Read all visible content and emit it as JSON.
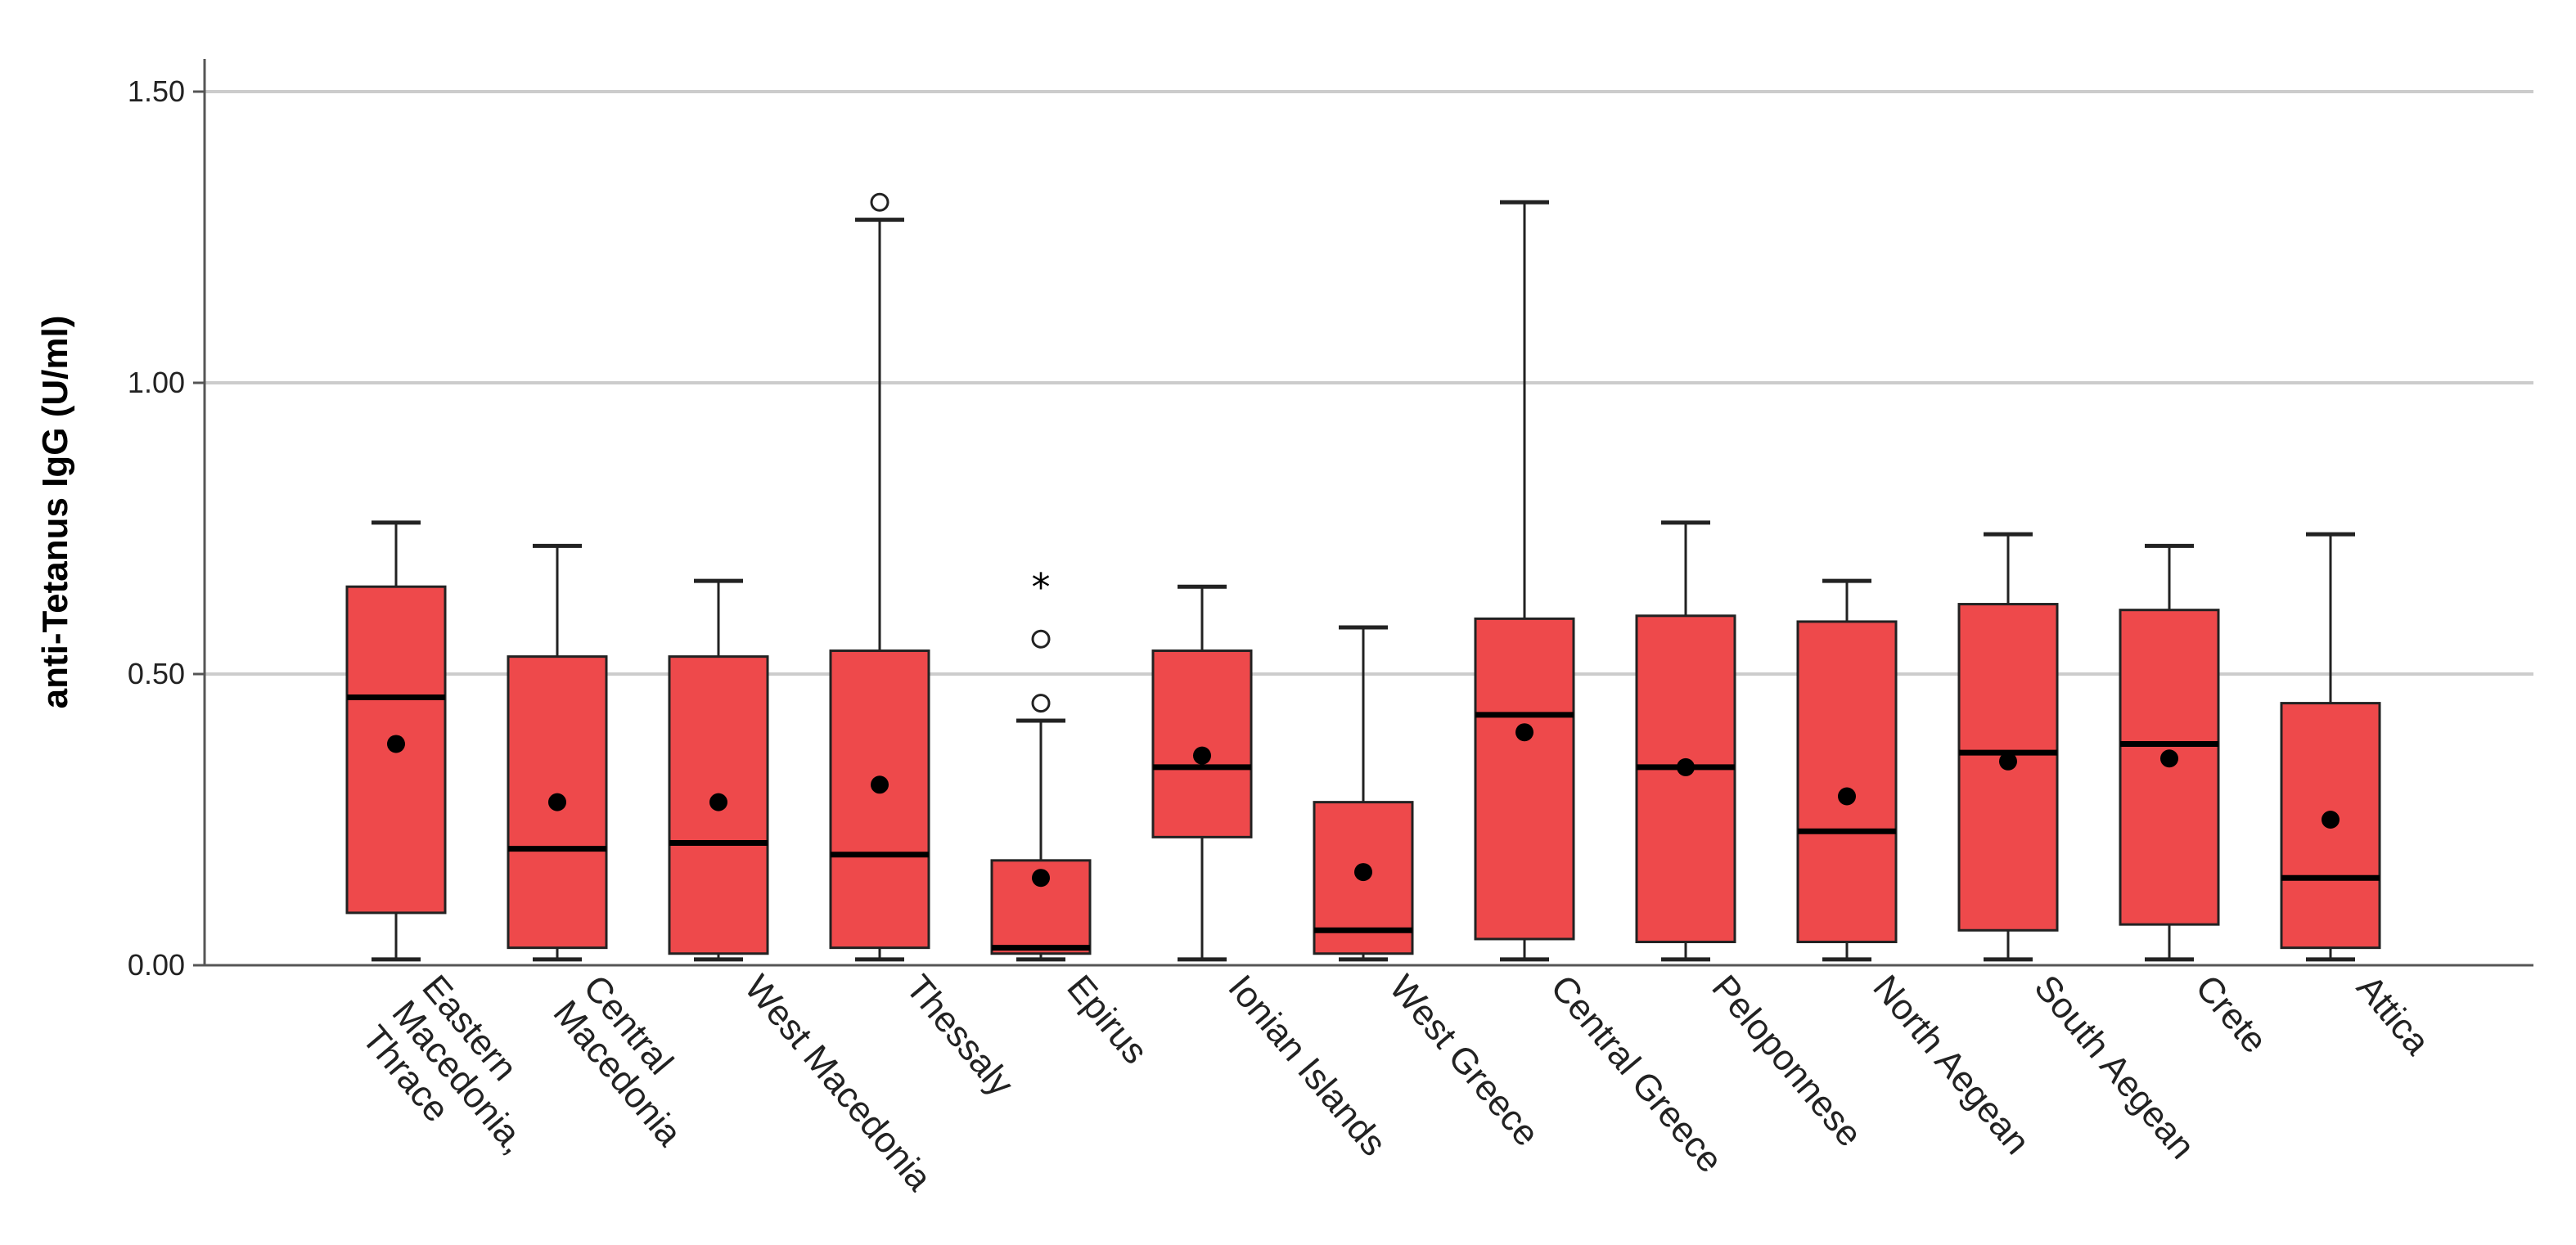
{
  "chart_data": {
    "type": "boxplot",
    "title": "",
    "xlabel": "",
    "ylabel": "anti-Tetanus IgG (U/ml)",
    "ylim": [
      0,
      1.5
    ],
    "yticks": [
      0,
      0.5,
      1.0,
      1.5
    ],
    "ytick_labels": [
      "0.00",
      "0.50",
      "1.00",
      "1.50"
    ],
    "grid": "horizontal",
    "colors": {
      "box_fill": "#ee494b",
      "box_edge": "#222222",
      "median": "#000000",
      "mean_marker": "#000000",
      "grid": "#cccccc",
      "axis": "#555555"
    },
    "markers": {
      "outlier": "○",
      "extreme": "*"
    },
    "categories": [
      {
        "label_lines": [
          "Eastern",
          "Macedonia,",
          "Thrace"
        ],
        "whisker_low": 0.01,
        "q1": 0.09,
        "median": 0.46,
        "q3": 0.65,
        "whisker_high": 0.76,
        "mean": 0.38,
        "outliers": [],
        "extremes": []
      },
      {
        "label_lines": [
          "Central",
          "Macedonia"
        ],
        "whisker_low": 0.01,
        "q1": 0.03,
        "median": 0.2,
        "q3": 0.53,
        "whisker_high": 0.72,
        "mean": 0.28,
        "outliers": [],
        "extremes": []
      },
      {
        "label_lines": [
          "West Macedonia"
        ],
        "whisker_low": 0.01,
        "q1": 0.02,
        "median": 0.21,
        "q3": 0.53,
        "whisker_high": 0.66,
        "mean": 0.28,
        "outliers": [],
        "extremes": []
      },
      {
        "label_lines": [
          "Thessaly"
        ],
        "whisker_low": 0.01,
        "q1": 0.03,
        "median": 0.19,
        "q3": 0.54,
        "whisker_high": 1.28,
        "mean": 0.31,
        "outliers": [
          1.31
        ],
        "extremes": []
      },
      {
        "label_lines": [
          "Epirus"
        ],
        "whisker_low": 0.01,
        "q1": 0.02,
        "median": 0.03,
        "q3": 0.18,
        "whisker_high": 0.42,
        "mean": 0.15,
        "outliers": [
          0.45,
          0.56
        ],
        "extremes": [
          0.66
        ]
      },
      {
        "label_lines": [
          "Ionian Islands"
        ],
        "whisker_low": 0.01,
        "q1": 0.22,
        "median": 0.34,
        "q3": 0.54,
        "whisker_high": 0.65,
        "mean": 0.36,
        "outliers": [],
        "extremes": []
      },
      {
        "label_lines": [
          "West Greece"
        ],
        "whisker_low": 0.01,
        "q1": 0.02,
        "median": 0.06,
        "q3": 0.28,
        "whisker_high": 0.58,
        "mean": 0.16,
        "outliers": [],
        "extremes": []
      },
      {
        "label_lines": [
          "Central Greece"
        ],
        "whisker_low": 0.01,
        "q1": 0.045,
        "median": 0.43,
        "q3": 0.595,
        "whisker_high": 1.31,
        "mean": 0.4,
        "outliers": [],
        "extremes": []
      },
      {
        "label_lines": [
          "Peloponnese"
        ],
        "whisker_low": 0.01,
        "q1": 0.04,
        "median": 0.34,
        "q3": 0.6,
        "whisker_high": 0.76,
        "mean": 0.34,
        "outliers": [],
        "extremes": []
      },
      {
        "label_lines": [
          "North Aegean"
        ],
        "whisker_low": 0.01,
        "q1": 0.04,
        "median": 0.23,
        "q3": 0.59,
        "whisker_high": 0.66,
        "mean": 0.29,
        "outliers": [],
        "extremes": []
      },
      {
        "label_lines": [
          "South Aegean"
        ],
        "whisker_low": 0.01,
        "q1": 0.06,
        "median": 0.365,
        "q3": 0.62,
        "whisker_high": 0.74,
        "mean": 0.35,
        "outliers": [],
        "extremes": []
      },
      {
        "label_lines": [
          "Crete"
        ],
        "whisker_low": 0.01,
        "q1": 0.07,
        "median": 0.38,
        "q3": 0.61,
        "whisker_high": 0.72,
        "mean": 0.355,
        "outliers": [],
        "extremes": []
      },
      {
        "label_lines": [
          "Attica"
        ],
        "whisker_low": 0.01,
        "q1": 0.03,
        "median": 0.15,
        "q3": 0.45,
        "whisker_high": 0.74,
        "mean": 0.25,
        "outliers": [],
        "extremes": []
      }
    ]
  }
}
